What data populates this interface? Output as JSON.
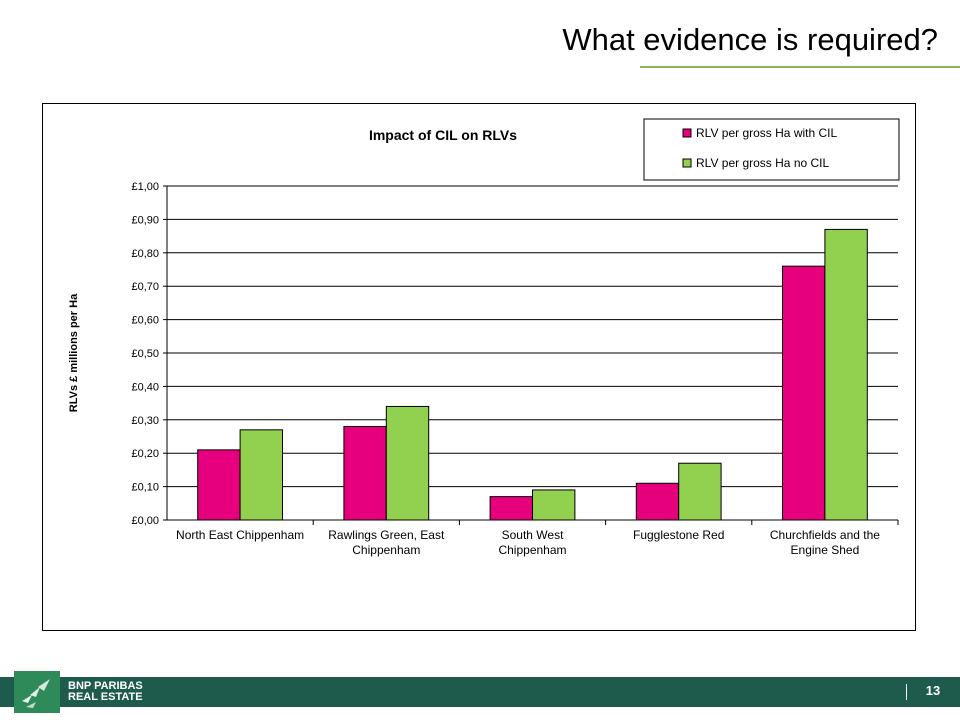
{
  "slide": {
    "title": "What evidence  is required?",
    "page_number": "13"
  },
  "footer": {
    "brand_line1": "BNP PARIBAS",
    "brand_line2": "REAL ESTATE"
  },
  "colors": {
    "accent_green": "#8db654",
    "footer_green": "#1f5b4c",
    "logo_green": "#2e8a58",
    "series_with_cil": "#e6007e",
    "series_no_cil": "#92d050"
  },
  "chart_data": {
    "type": "bar",
    "title": "Impact of CIL on RLVs",
    "xlabel": "",
    "ylabel": "RLVs £ millions per Ha",
    "ylim": [
      0,
      1.0
    ],
    "y_ticks": [
      "£0,00",
      "£0,10",
      "£0,20",
      "£0,30",
      "£0,40",
      "£0,50",
      "£0,60",
      "£0,70",
      "£0,80",
      "£0,90",
      "£1,00"
    ],
    "grid": true,
    "legend_position": "top-right",
    "categories": [
      [
        "North East Chippenham"
      ],
      [
        "Rawlings Green, East",
        "Chippenham"
      ],
      [
        "South West",
        "Chippenham"
      ],
      [
        "Fugglestone Red"
      ],
      [
        "Churchfields and the",
        "Engine Shed"
      ]
    ],
    "series": [
      {
        "name": "RLV per gross Ha with CIL",
        "color": "#e6007e",
        "values": [
          0.21,
          0.28,
          0.07,
          0.11,
          0.76
        ]
      },
      {
        "name": "RLV per gross Ha no CIL",
        "color": "#92d050",
        "values": [
          0.27,
          0.34,
          0.09,
          0.17,
          0.87
        ]
      }
    ]
  }
}
